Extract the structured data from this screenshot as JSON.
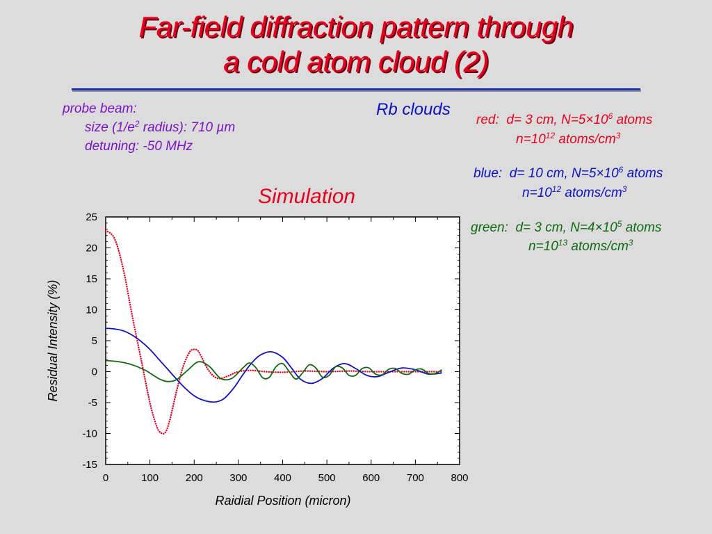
{
  "slide": {
    "title_line1": "Far-field diffraction pattern through",
    "title_line2": "a cold atom cloud (2)",
    "probe": {
      "heading": "probe beam:",
      "size_prefix": "size (1/e",
      "size_sup": "2",
      "size_mid": " radius):  710 ",
      "size_unit": "µm",
      "detuning": "detuning: -50 MHz"
    },
    "rb_clouds": "Rb clouds",
    "simulation": "Simulation",
    "legend": [
      {
        "color": "red",
        "label": "red:",
        "d": "d= 3 cm, N=5",
        "times": "×",
        "mant": "10",
        "exp": "6",
        "atoms": " atoms",
        "n_base": "n=10",
        "n_exp": "12",
        "n_unit": " atoms/cm",
        "n_unit_exp": "3"
      },
      {
        "color": "blue",
        "label": "blue:",
        "d": "d= 10 cm, N=5",
        "times": "×",
        "mant": "10",
        "exp": "6",
        "atoms": " atoms",
        "n_base": "n=10",
        "n_exp": "12",
        "n_unit": " atoms/cm",
        "n_unit_exp": "3"
      },
      {
        "color": "green",
        "label": "green:",
        "d": "d= 3 cm, N=4",
        "times": "×",
        "mant": "10",
        "exp": "5",
        "atoms": " atoms",
        "n_base": "n=10",
        "n_exp": "13",
        "n_unit": " atoms/cm",
        "n_unit_exp": "3"
      }
    ]
  },
  "chart_data": {
    "type": "line",
    "xlabel": "Raidial Position (micron)",
    "ylabel": "Residual Intensity (%)",
    "xlim": [
      0,
      800
    ],
    "ylim": [
      -15,
      25
    ],
    "xticks": [
      0,
      100,
      200,
      300,
      400,
      500,
      600,
      700,
      800
    ],
    "yticks": [
      -15,
      -10,
      -5,
      0,
      5,
      10,
      15,
      20,
      25
    ],
    "grid": false,
    "series": [
      {
        "color": "#e8001c",
        "style": "dotted",
        "x": [
          0,
          20,
          40,
          60,
          80,
          100,
          115,
          125,
          135,
          145,
          160,
          175,
          190,
          200,
          208,
          215,
          230,
          245,
          260,
          280,
          300,
          330,
          360,
          400,
          450,
          500,
          550,
          600,
          650,
          700,
          760
        ],
        "y": [
          22.8,
          21.5,
          16.5,
          9,
          2,
          -5,
          -8.8,
          -9.9,
          -9.8,
          -7.8,
          -3.2,
          0.8,
          3.2,
          3.6,
          3.4,
          2.6,
          0.5,
          -0.8,
          -1.1,
          -0.6,
          0,
          0.2,
          0,
          -0.1,
          0.1,
          0,
          0.1,
          0,
          0,
          0,
          0
        ]
      },
      {
        "color": "#0a10c8",
        "style": "solid",
        "x": [
          0,
          20,
          40,
          60,
          80,
          100,
          120,
          140,
          160,
          180,
          200,
          220,
          240,
          255,
          270,
          290,
          310,
          330,
          350,
          375,
          400,
          420,
          440,
          465,
          490,
          515,
          540,
          565,
          590,
          615,
          640,
          670,
          700,
          730,
          760
        ],
        "y": [
          7,
          6.9,
          6.6,
          5.9,
          4.9,
          3.6,
          2,
          0.4,
          -1.2,
          -2.7,
          -3.9,
          -4.6,
          -4.9,
          -4.8,
          -4.2,
          -2.6,
          -0.5,
          1.4,
          2.7,
          3.2,
          2.3,
          0.6,
          -1.2,
          -1.9,
          -1.1,
          0.6,
          1.3,
          0.5,
          -0.6,
          -0.8,
          -0.1,
          0.6,
          0.3,
          -0.4,
          -0.2
        ]
      },
      {
        "color": "#0f6a10",
        "style": "solid",
        "x": [
          0,
          30,
          60,
          90,
          110,
          125,
          140,
          160,
          185,
          210,
          235,
          260,
          285,
          310,
          325,
          340,
          355,
          370,
          385,
          400,
          415,
          430,
          445,
          460,
          475,
          490,
          505,
          520,
          535,
          550,
          565,
          580,
          595,
          610,
          625,
          640,
          655,
          670,
          685,
          700,
          715,
          730,
          745,
          760
        ],
        "y": [
          1.8,
          1.6,
          1.1,
          0.2,
          -0.7,
          -1.3,
          -1.6,
          -1.3,
          0.2,
          1.6,
          0.8,
          -1.1,
          -1.1,
          0.6,
          1.4,
          0.6,
          -1,
          -0.9,
          0.8,
          1.3,
          0,
          -1.2,
          -0.2,
          1.1,
          0.6,
          -0.9,
          -0.6,
          0.8,
          0.6,
          -0.6,
          -0.6,
          0.5,
          0.6,
          -0.4,
          -0.5,
          0.4,
          0.5,
          -0.3,
          -0.4,
          0.3,
          0.4,
          -0.3,
          -0.3,
          0.3
        ]
      }
    ]
  }
}
